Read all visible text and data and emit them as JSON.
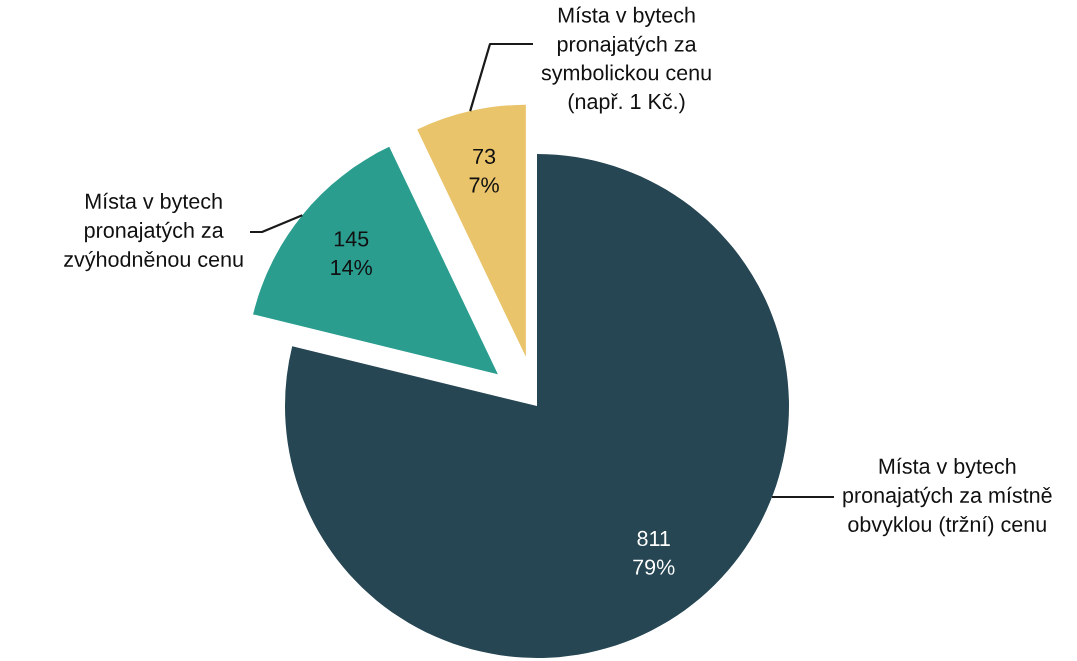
{
  "chart_data": {
    "type": "pie",
    "categories": [
      "Místa v bytech\npronajatých za místně\nobvyklou (tržní) cenu",
      "Místa v bytech\npronajatých za\nzvýhodněnou cenu",
      "Místa v bytech\npronajatých za\nsymbolickou cenu\n(např. 1 Kč.)"
    ],
    "values": [
      811,
      145,
      73
    ],
    "value_labels": [
      "811\n79%",
      "145\n14%",
      "73\n7%"
    ],
    "colors": [
      "#264653",
      "#2a9d8f",
      "#e9c46a"
    ]
  }
}
